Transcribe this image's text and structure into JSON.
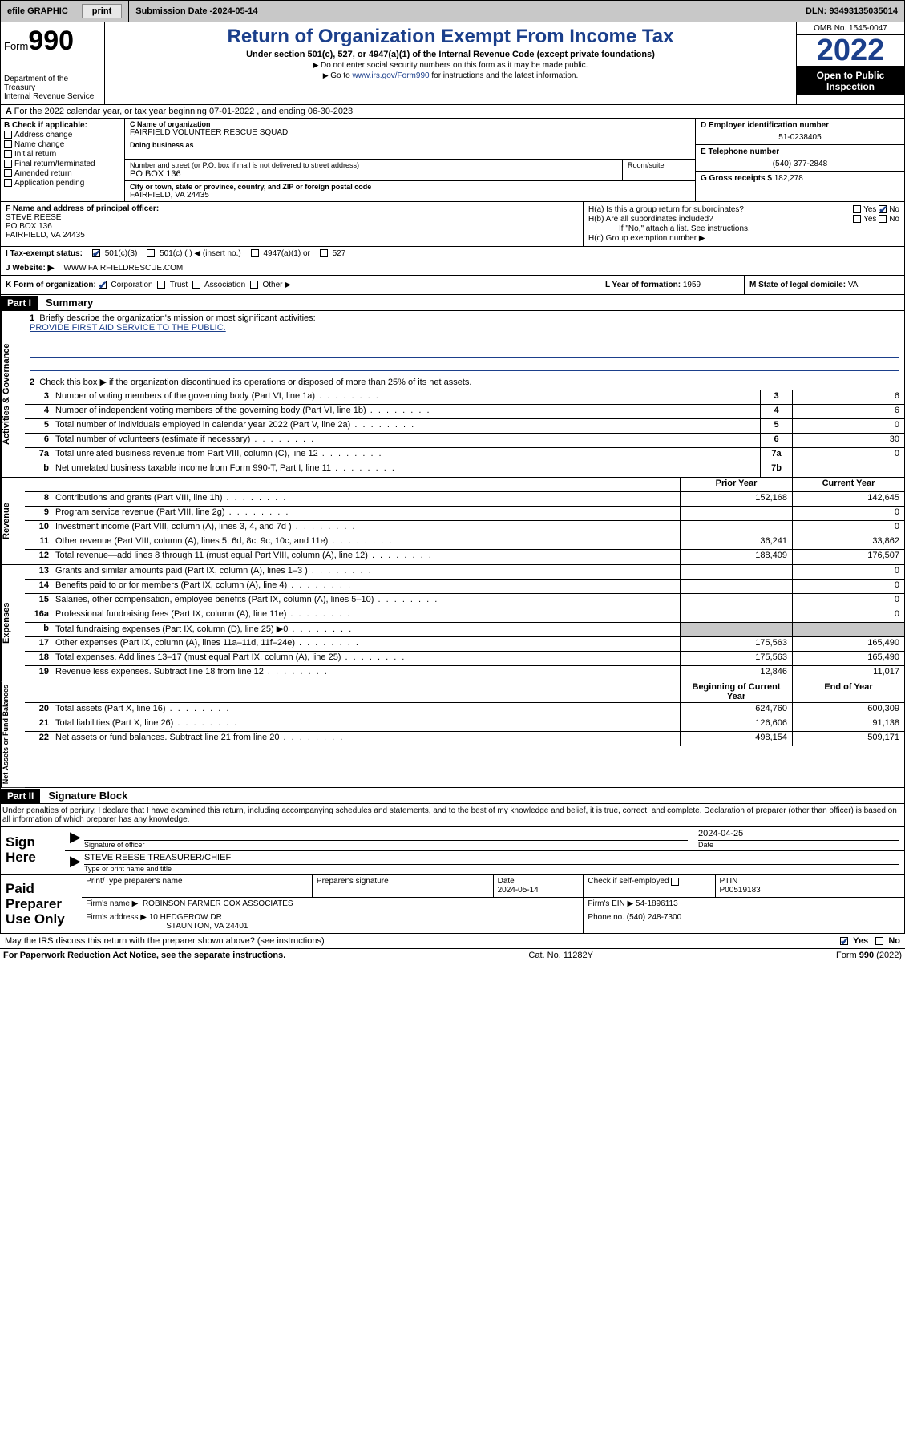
{
  "topbar": {
    "efile": "efile GRAPHIC",
    "print": "print",
    "sub_label": "Submission Date - ",
    "sub_date": "2024-05-14",
    "dln": "DLN: 93493135035014"
  },
  "header": {
    "form_word": "Form",
    "form_num": "990",
    "dept": "Department of the Treasury\nInternal Revenue Service",
    "title": "Return of Organization Exempt From Income Tax",
    "subtitle": "Under section 501(c), 527, or 4947(a)(1) of the Internal Revenue Code (except private foundations)",
    "note1": "Do not enter social security numbers on this form as it may be made public.",
    "note2_pre": "Go to ",
    "note2_link": "www.irs.gov/Form990",
    "note2_post": " for instructions and the latest information.",
    "omb": "OMB No. 1545-0047",
    "year": "2022",
    "open": "Open to Public Inspection"
  },
  "period": "For the 2022 calendar year, or tax year beginning 07-01-2022  , and ending 06-30-2023",
  "boxB": {
    "title": "B Check if applicable:",
    "items": [
      "Address change",
      "Name change",
      "Initial return",
      "Final return/terminated",
      "Amended return",
      "Application pending"
    ]
  },
  "boxC": {
    "name_lbl": "C Name of organization",
    "name": "FAIRFIELD VOLUNTEER RESCUE SQUAD",
    "dba_lbl": "Doing business as",
    "street_lbl": "Number and street (or P.O. box if mail is not delivered to street address)",
    "street": "PO BOX 136",
    "suite_lbl": "Room/suite",
    "city_lbl": "City or town, state or province, country, and ZIP or foreign postal code",
    "city": "FAIRFIELD, VA  24435"
  },
  "boxDE": {
    "d_lbl": "D Employer identification number",
    "d_val": "51-0238405",
    "e_lbl": "E Telephone number",
    "e_val": "(540) 377-2848",
    "g_lbl": "G Gross receipts $ ",
    "g_val": "182,278"
  },
  "rowF": {
    "lbl": "F Name and address of principal officer:",
    "name": "STEVE REESE",
    "addr1": "PO BOX 136",
    "addr2": "FAIRFIELD, VA  24435"
  },
  "rowH": {
    "ha": "H(a)  Is this a group return for subordinates?",
    "hb": "H(b)  Are all subordinates included?",
    "hb2": "If \"No,\" attach a list. See instructions.",
    "hc": "H(c)  Group exemption number ▶",
    "yes": "Yes",
    "no": "No"
  },
  "rowI": {
    "lbl": "I    Tax-exempt status:",
    "o1": "501(c)(3)",
    "o2": "501(c) (  ) ◀ (insert no.)",
    "o3": "4947(a)(1) or",
    "o4": "527"
  },
  "rowJ": {
    "lbl": "J   Website: ▶",
    "val": "WWW.FAIRFIELDRESCUE.COM"
  },
  "rowK": {
    "lbl": "K Form of organization:",
    "opts": [
      "Corporation",
      "Trust",
      "Association",
      "Other ▶"
    ],
    "checked": 0
  },
  "rowL": {
    "lbl": "L Year of formation: ",
    "val": "1959"
  },
  "rowM": {
    "lbl": "M State of legal domicile: ",
    "val": "VA"
  },
  "part1": {
    "tag": "Part I",
    "title": "Summary"
  },
  "brief": {
    "q1": "Briefly describe the organization's mission or most significant activities:",
    "mission": "PROVIDE FIRST AID SERVICE TO THE PUBLIC.",
    "q2": "Check this box ▶        if the organization discontinued its operations or disposed of more than 25% of its net assets."
  },
  "vlabels": {
    "gov": "Activities & Governance",
    "rev": "Revenue",
    "exp": "Expenses",
    "net": "Net Assets or Fund Balances"
  },
  "gov_rows": [
    {
      "n": "3",
      "t": "Number of voting members of the governing body (Part VI, line 1a)",
      "box": "3",
      "v": "6"
    },
    {
      "n": "4",
      "t": "Number of independent voting members of the governing body (Part VI, line 1b)",
      "box": "4",
      "v": "6"
    },
    {
      "n": "5",
      "t": "Total number of individuals employed in calendar year 2022 (Part V, line 2a)",
      "box": "5",
      "v": "0"
    },
    {
      "n": "6",
      "t": "Total number of volunteers (estimate if necessary)",
      "box": "6",
      "v": "30"
    },
    {
      "n": "7a",
      "t": "Total unrelated business revenue from Part VIII, column (C), line 12",
      "box": "7a",
      "v": "0"
    },
    {
      "n": "b",
      "t": "Net unrelated business taxable income from Form 990-T, Part I, line 11",
      "box": "7b",
      "v": ""
    }
  ],
  "pysplit_hdr": {
    "prior": "Prior Year",
    "current": "Current Year"
  },
  "rev_rows": [
    {
      "n": "8",
      "t": "Contributions and grants (Part VIII, line 1h)",
      "p": "152,168",
      "c": "142,645"
    },
    {
      "n": "9",
      "t": "Program service revenue (Part VIII, line 2g)",
      "p": "",
      "c": "0"
    },
    {
      "n": "10",
      "t": "Investment income (Part VIII, column (A), lines 3, 4, and 7d )",
      "p": "",
      "c": "0"
    },
    {
      "n": "11",
      "t": "Other revenue (Part VIII, column (A), lines 5, 6d, 8c, 9c, 10c, and 11e)",
      "p": "36,241",
      "c": "33,862"
    },
    {
      "n": "12",
      "t": "Total revenue—add lines 8 through 11 (must equal Part VIII, column (A), line 12)",
      "p": "188,409",
      "c": "176,507"
    }
  ],
  "exp_rows": [
    {
      "n": "13",
      "t": "Grants and similar amounts paid (Part IX, column (A), lines 1–3 )",
      "p": "",
      "c": "0"
    },
    {
      "n": "14",
      "t": "Benefits paid to or for members (Part IX, column (A), line 4)",
      "p": "",
      "c": "0"
    },
    {
      "n": "15",
      "t": "Salaries, other compensation, employee benefits (Part IX, column (A), lines 5–10)",
      "p": "",
      "c": "0"
    },
    {
      "n": "16a",
      "t": "Professional fundraising fees (Part IX, column (A), line 11e)",
      "p": "",
      "c": "0"
    },
    {
      "n": "b",
      "t": "Total fundraising expenses (Part IX, column (D), line 25) ▶0",
      "p": "SHADE",
      "c": "SHADE"
    },
    {
      "n": "17",
      "t": "Other expenses (Part IX, column (A), lines 11a–11d, 11f–24e)",
      "p": "175,563",
      "c": "165,490"
    },
    {
      "n": "18",
      "t": "Total expenses. Add lines 13–17 (must equal Part IX, column (A), line 25)",
      "p": "175,563",
      "c": "165,490"
    },
    {
      "n": "19",
      "t": "Revenue less expenses. Subtract line 18 from line 12",
      "p": "12,846",
      "c": "11,017"
    }
  ],
  "net_hdr": {
    "prior": "Beginning of Current Year",
    "current": "End of Year"
  },
  "net_rows": [
    {
      "n": "20",
      "t": "Total assets (Part X, line 16)",
      "p": "624,760",
      "c": "600,309"
    },
    {
      "n": "21",
      "t": "Total liabilities (Part X, line 26)",
      "p": "126,606",
      "c": "91,138"
    },
    {
      "n": "22",
      "t": "Net assets or fund balances. Subtract line 21 from line 20",
      "p": "498,154",
      "c": "509,171"
    }
  ],
  "part2": {
    "tag": "Part II",
    "title": "Signature Block"
  },
  "penalty": "Under penalties of perjury, I declare that I have examined this return, including accompanying schedules and statements, and to the best of my knowledge and belief, it is true, correct, and complete. Declaration of preparer (other than officer) is based on all information of which preparer has any knowledge.",
  "sign": {
    "label": "Sign Here",
    "sig_lbl": "Signature of officer",
    "date_lbl": "Date",
    "date_val": "2024-04-25",
    "name": "STEVE REESE  TREASURER/CHIEF",
    "name_lbl": "Type or print name and title"
  },
  "paid": {
    "label": "Paid Preparer Use Only",
    "h_name": "Print/Type preparer's name",
    "h_sig": "Preparer's signature",
    "h_date": "Date",
    "date_val": "2024-05-14",
    "h_check": "Check        if self-employed",
    "h_ptin": "PTIN",
    "ptin": "P00519183",
    "firm_name_lbl": "Firm's name     ▶",
    "firm_name": "ROBINSON FARMER COX ASSOCIATES",
    "firm_ein_lbl": "Firm's EIN ▶ ",
    "firm_ein": "54-1896113",
    "firm_addr_lbl": "Firm's address ▶",
    "firm_addr1": "10 HEDGEROW DR",
    "firm_addr2": "STAUNTON, VA  24401",
    "phone_lbl": "Phone no. ",
    "phone": "(540) 248-7300"
  },
  "may_irs": {
    "q": "May the IRS discuss this return with the preparer shown above? (see instructions)",
    "yes": "Yes",
    "no": "No"
  },
  "footer": {
    "l": "For Paperwork Reduction Act Notice, see the separate instructions.",
    "m": "Cat. No. 11282Y",
    "r": "Form 990 (2022)"
  }
}
